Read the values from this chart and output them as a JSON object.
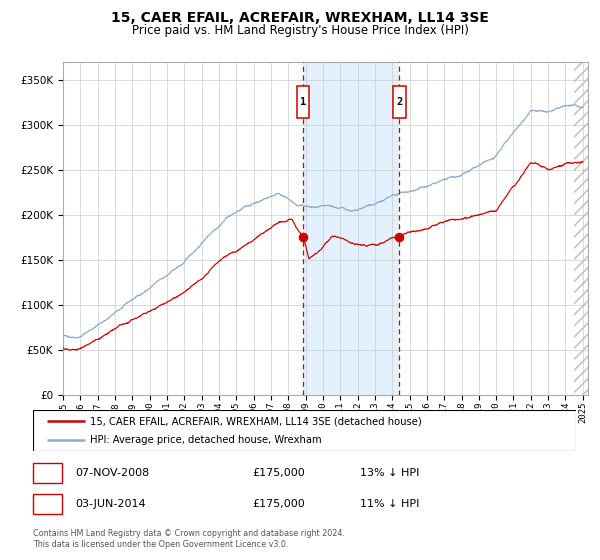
{
  "title": "15, CAER EFAIL, ACREFAIR, WREXHAM, LL14 3SE",
  "subtitle": "Price paid vs. HM Land Registry's House Price Index (HPI)",
  "legend_line1": "15, CAER EFAIL, ACREFAIR, WREXHAM, LL14 3SE (detached house)",
  "legend_line2": "HPI: Average price, detached house, Wrexham",
  "annotation1_date": "07-NOV-2008",
  "annotation1_price": "£175,000",
  "annotation1_hpi": "13% ↓ HPI",
  "annotation2_date": "03-JUN-2014",
  "annotation2_price": "£175,000",
  "annotation2_hpi": "11% ↓ HPI",
  "footer": "Contains HM Land Registry data © Crown copyright and database right 2024.\nThis data is licensed under the Open Government Licence v3.0.",
  "sale1_year": 2008.85,
  "sale2_year": 2014.42,
  "sale1_value": 175000,
  "sale2_value": 175000,
  "ylim": [
    0,
    370000
  ],
  "xlim_start": 1995,
  "xlim_end": 2025.3,
  "hatch_start": 2024.5,
  "shading_start": 2008.85,
  "shading_end": 2014.42,
  "red_line_color": "#cc0000",
  "blue_line_color": "#88aacc",
  "background_color": "#ffffff",
  "grid_color": "#cccccc",
  "shading_color": "#ddeeff",
  "hatch_color": "#bbbbbb"
}
